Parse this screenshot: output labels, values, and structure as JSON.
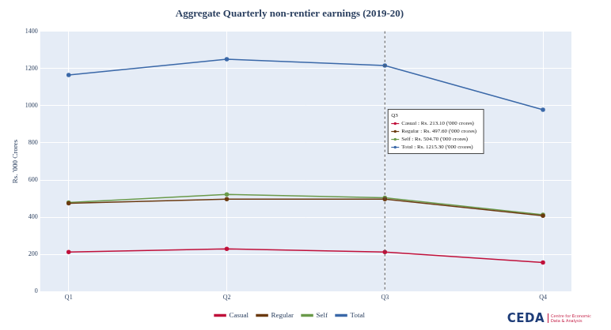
{
  "chart_data": {
    "type": "line",
    "title": "Aggregate Quarterly non-rentier earnings (2019-20)",
    "y_label": "Rs. '000 Crores",
    "categories": [
      "Q1",
      "Q2",
      "Q3",
      "Q4"
    ],
    "series": [
      {
        "name": "Casual",
        "color": "#c0103a",
        "values": [
          213,
          230,
          213.1,
          157
        ]
      },
      {
        "name": "Regular",
        "color": "#6b3a10",
        "values": [
          475,
          497,
          497.6,
          408
        ]
      },
      {
        "name": "Self",
        "color": "#6a9a4a",
        "values": [
          479,
          523,
          504.7,
          413
        ]
      },
      {
        "name": "Total",
        "color": "#3a68a8",
        "values": [
          1165,
          1250,
          1215.3,
          978
        ]
      }
    ],
    "marker": "circle",
    "line_style": "solid",
    "ylim": [
      0,
      1400
    ],
    "yticks": [
      0,
      200,
      400,
      600,
      800,
      1000,
      1200,
      1400
    ],
    "grid": true,
    "legend": "bottom",
    "annotation": {
      "category": "Q3",
      "title": "Q3",
      "lines": [
        {
          "series": "Casual",
          "text": "Casual : Rs. 213.10 ('000 crores)"
        },
        {
          "series": "Regular",
          "text": "Regular : Rs. 497.60 ('000 crores)"
        },
        {
          "series": "Self",
          "text": "Self : Rs. 504.70 ('000 crores)"
        },
        {
          "series": "Total",
          "text": "Total : Rs. 1215.30 ('000 crores)"
        }
      ]
    },
    "footer": {
      "logo": "CEDA",
      "logo_caption": "Centre for Economic Data & Analysis"
    }
  }
}
